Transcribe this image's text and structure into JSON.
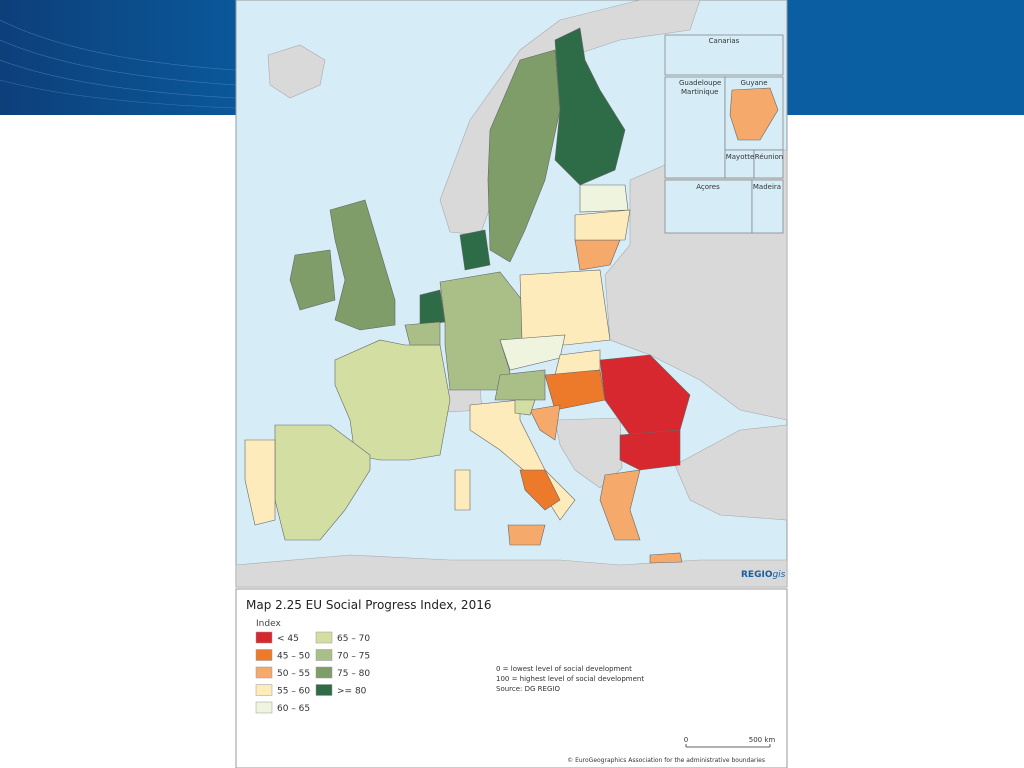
{
  "header": {
    "brand": [
      "REGIO",
      "gis"
    ]
  },
  "insets": [
    "Canarias",
    "Guadeloupe",
    "Martinique",
    "Guyane",
    "Mayotte",
    "Réunion",
    "Açores",
    "Madeira"
  ],
  "legend": {
    "title": "Index",
    "items": [
      {
        "label": "< 45",
        "color": "#d7282f"
      },
      {
        "label": "45 – 50",
        "color": "#ec7a2a"
      },
      {
        "label": "50 – 55",
        "color": "#f5a96a"
      },
      {
        "label": "55 – 60",
        "color": "#fdebbb"
      },
      {
        "label": "60 – 65",
        "color": "#eff4df"
      },
      {
        "label": "65 – 70",
        "color": "#d3dea3"
      },
      {
        "label": "70 – 75",
        "color": "#a9bf87"
      },
      {
        "label": "75 – 80",
        "color": "#7e9d68"
      },
      {
        "label": ">= 80",
        "color": "#2e6b47"
      }
    ]
  },
  "map": {
    "title": "Map 2.25 EU Social Progress Index, 2016",
    "notes": [
      "0 = lowest level of social development",
      "100 = highest level of social development",
      "Source: DG REGIO"
    ],
    "scale": [
      "0",
      "500 km"
    ],
    "copyright": "© EuroGeographics Association for the administrative boundaries"
  }
}
